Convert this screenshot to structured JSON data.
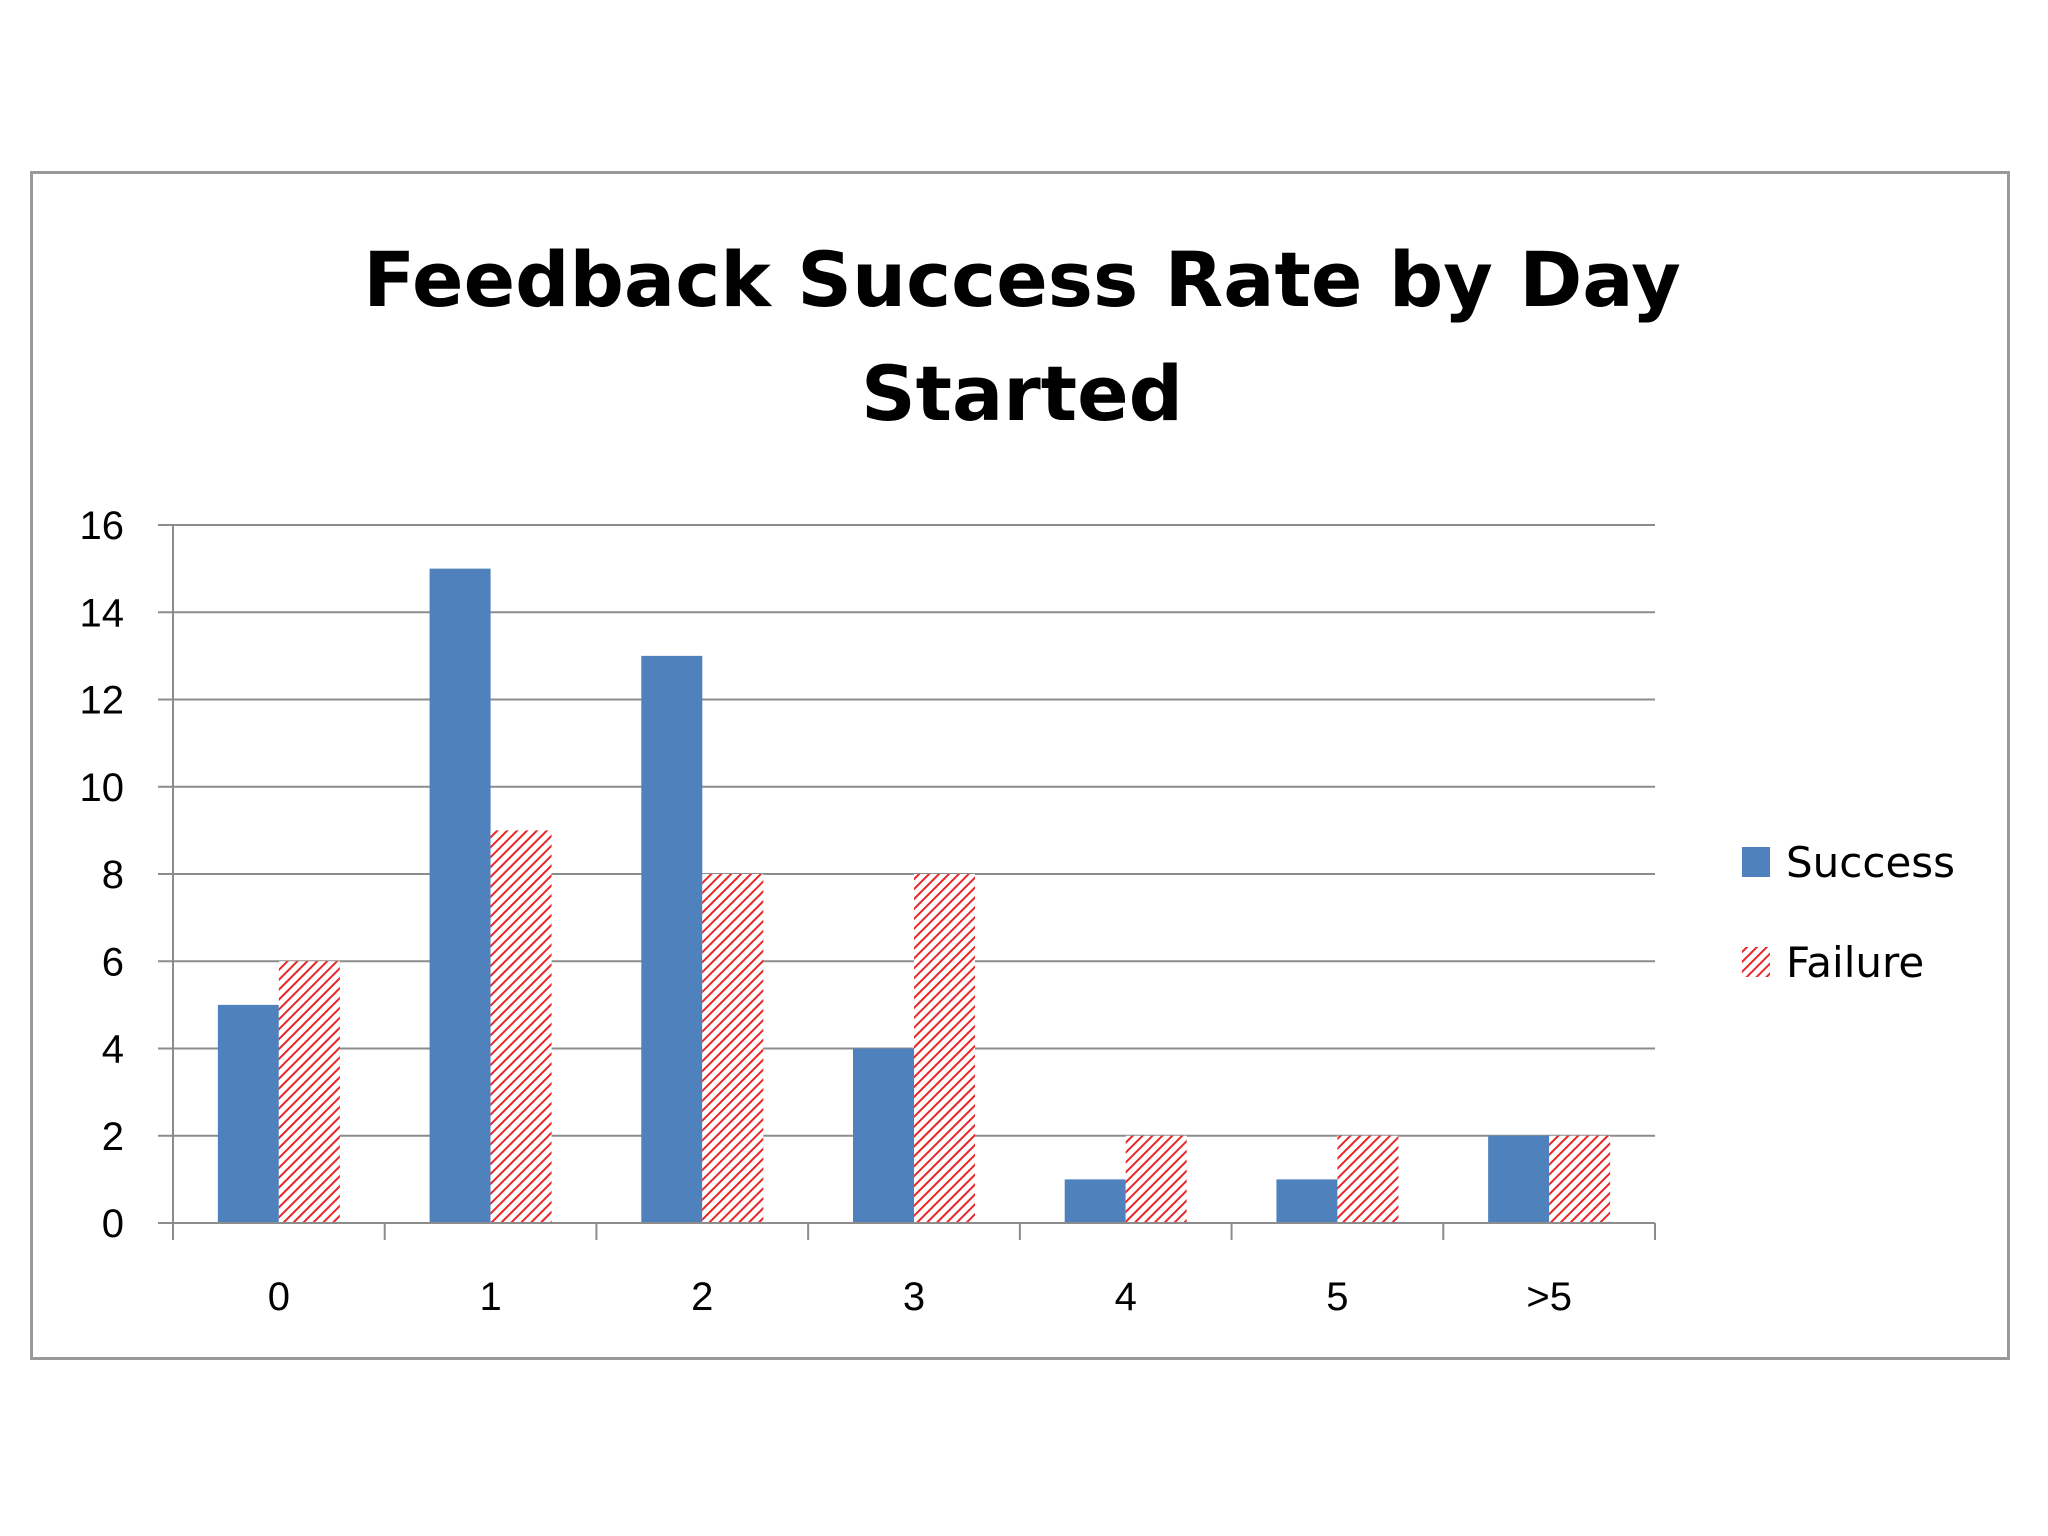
{
  "chart_data": {
    "type": "bar",
    "title_lines": [
      "Feedback Success Rate by Day",
      "Started"
    ],
    "categories": [
      "0",
      "1",
      "2",
      "3",
      "4",
      "5",
      ">5"
    ],
    "series": [
      {
        "name": "Success",
        "values": [
          5,
          15,
          13,
          4,
          1,
          1,
          2
        ],
        "color": "#4f81bd",
        "fill": "solid"
      },
      {
        "name": "Failure",
        "values": [
          6,
          9,
          8,
          8,
          2,
          2,
          2
        ],
        "color": "#e8262a",
        "fill": "diagonal-hatch"
      }
    ],
    "ylim": [
      0,
      16
    ],
    "yticks": [
      0,
      2,
      4,
      6,
      8,
      10,
      12,
      14,
      16
    ],
    "grid": true,
    "legend_position": "right",
    "xlabel": "",
    "ylabel": ""
  }
}
